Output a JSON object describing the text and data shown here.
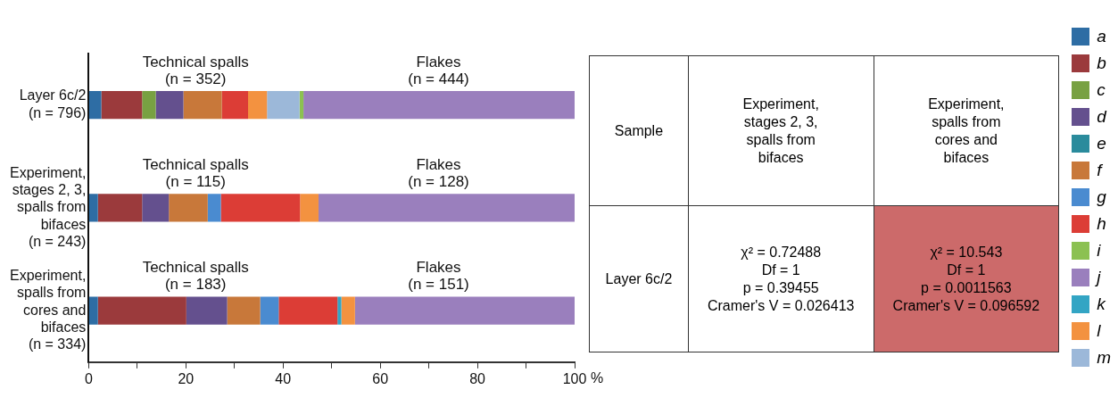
{
  "chart_data": [
    {
      "type": "bar",
      "orientation": "horizontal",
      "stacked": true,
      "xlabel": "%",
      "categories": [
        "Layer 6c/2\n(n = 796)",
        "Experiment,\nstages 2, 3,\nspalls from\nbifaces\n(n = 243)",
        "Experiment,\nspalls from\ncores and\nbifaces\n(n = 334)"
      ],
      "series": [
        {
          "name": "a",
          "color": "#2e6da4",
          "values": [
            2.6,
            1.9,
            1.9
          ]
        },
        {
          "name": "b",
          "color": "#9b3a3c",
          "values": [
            8.4,
            9.1,
            18.2
          ]
        },
        {
          "name": "c",
          "color": "#78a142",
          "values": [
            2.8,
            null,
            null
          ]
        },
        {
          "name": "d",
          "color": "#64508e",
          "values": [
            5.7,
            5.5,
            8.4
          ]
        },
        {
          "name": "e",
          "color": "#2a8b9c",
          "values": [
            null,
            null,
            null
          ]
        },
        {
          "name": "f",
          "color": "#c8783a",
          "values": [
            7.9,
            8.0,
            6.8
          ]
        },
        {
          "name": "g",
          "color": "#4a8bd0",
          "values": [
            null,
            2.7,
            3.8
          ]
        },
        {
          "name": "h",
          "color": "#dc3d36",
          "values": [
            5.4,
            16.3,
            12.1
          ]
        },
        {
          "name": "k",
          "color": "#33a5c4",
          "values": [
            null,
            null,
            0.8
          ]
        },
        {
          "name": "l",
          "color": "#f39240",
          "values": [
            3.9,
            3.8,
            2.8
          ]
        },
        {
          "name": "m",
          "color": "#9cb8d9",
          "values": [
            6.7,
            null,
            null
          ]
        },
        {
          "name": "i",
          "color": "#8cc152",
          "values": [
            0.8,
            null,
            null
          ]
        },
        {
          "name": "j",
          "color": "#9a7fbd",
          "values": [
            55.8,
            52.7,
            45.2
          ]
        }
      ],
      "xlim": [
        0,
        100
      ],
      "xticks": [
        0,
        {
          "value": 10,
          "label": null
        },
        20,
        {
          "value": 30,
          "label": null
        },
        40,
        {
          "value": 50,
          "label": null
        },
        60,
        {
          "value": 70,
          "label": null
        },
        80,
        {
          "value": 90,
          "label": null
        },
        100
      ],
      "legend": "right",
      "grid": false,
      "annotations": [
        "Technical spalls\n(n = 352)",
        "Flakes\n(n = 444)",
        "Technical spalls\n(n = 115)",
        "Flakes\n(n = 128)",
        "Technical spalls\n(n = 183)",
        "Flakes\n(n = 151)"
      ]
    },
    {
      "type": "other",
      "annotations": [
        "Sample",
        "Experiment,\nstages 2, 3,\nspalls from\nbifaces",
        "Experiment,\nspalls from\ncores and\nbifaces",
        "Layer 6c/2",
        "χ² = 0.72488\nDf = 1\np = 0.39455\nCramer's V = 0.026413",
        "χ² = 10.543\nDf = 1\np = 0.0011563\nCramer's V = 0.096592"
      ],
      "colors": [
        null,
        null,
        null,
        null,
        null,
        "#cc6a6a"
      ]
    }
  ]
}
